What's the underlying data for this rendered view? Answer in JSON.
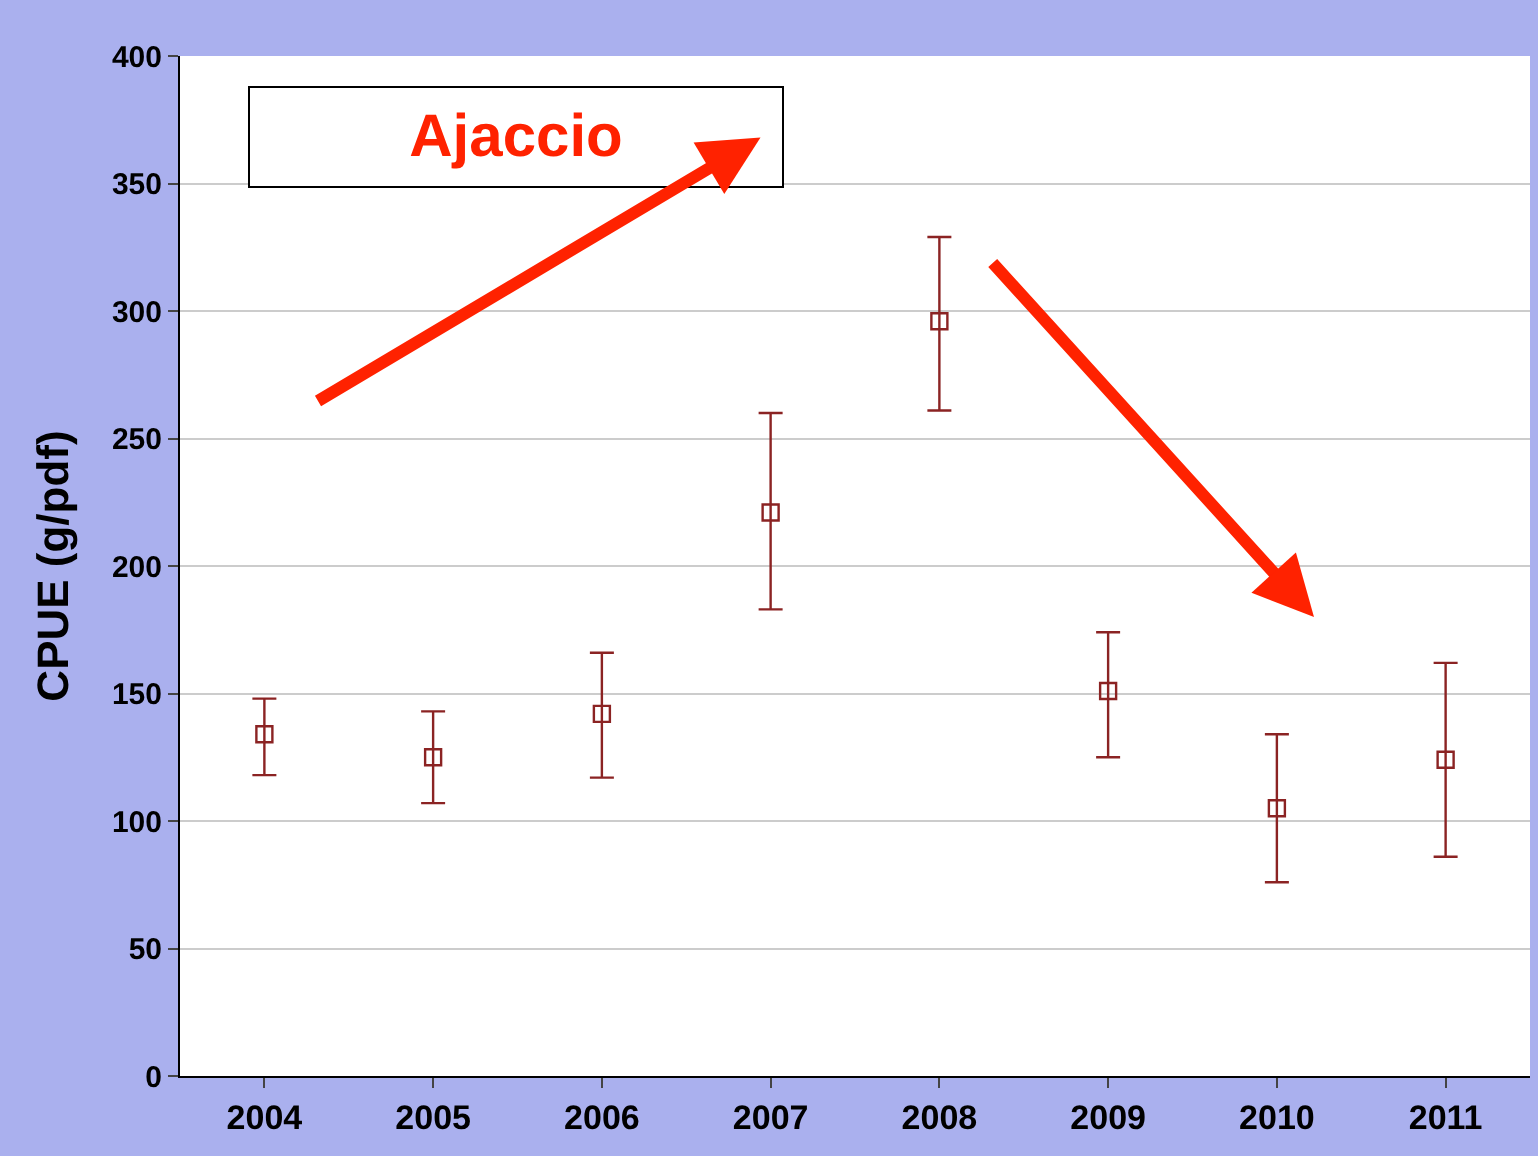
{
  "chart_data": {
    "type": "scatter",
    "ylabel": "CPUE (g/pdf)",
    "categories": [
      "2004",
      "2005",
      "2006",
      "2007",
      "2008",
      "2009",
      "2010",
      "2011"
    ],
    "series": [
      {
        "color": "#8b2323",
        "values": [
          134,
          125,
          142,
          221,
          296,
          151,
          105,
          124
        ],
        "errors": [
          [
            118,
            148
          ],
          [
            107,
            143
          ],
          [
            117,
            166
          ],
          [
            183,
            260
          ],
          [
            261,
            329
          ],
          [
            125,
            174
          ],
          [
            76,
            134
          ],
          [
            86,
            162
          ]
        ]
      }
    ],
    "ylim": [
      0,
      400
    ],
    "yticks": [
      0,
      50,
      100,
      150,
      200,
      250,
      300,
      350,
      400
    ],
    "grid": "y",
    "marker": "square",
    "annotations": [
      "Ajaccio"
    ]
  }
}
